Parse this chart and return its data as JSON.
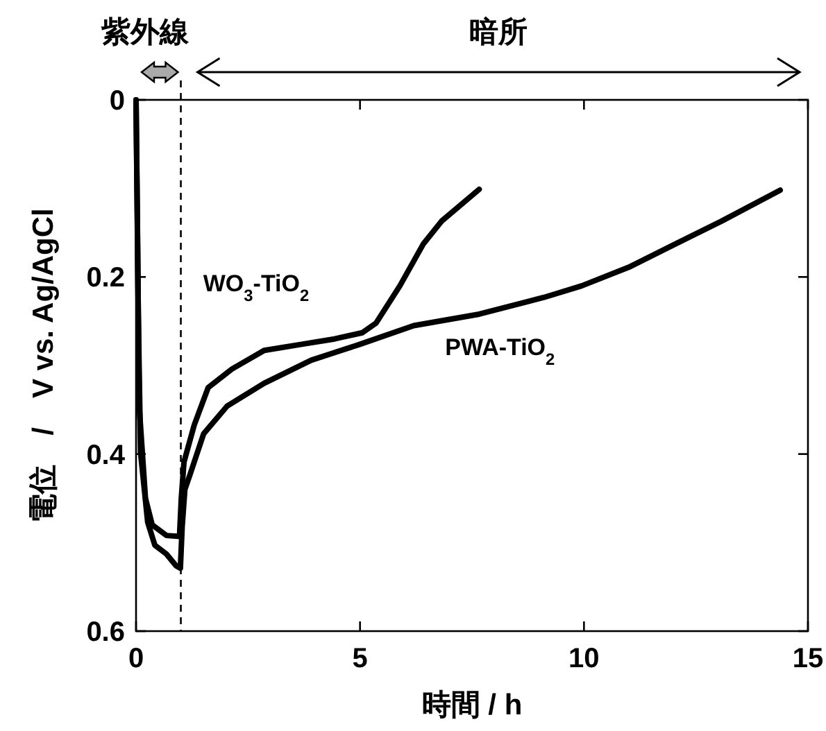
{
  "chart_data": {
    "type": "line",
    "xlabel": "時間 / h",
    "ylabel": "電位　/　V vs. Ag/AgCl",
    "annotations": [
      "紫外線",
      "暗所"
    ],
    "xlim": [
      0,
      15
    ],
    "ylim": [
      0.6,
      0
    ],
    "xticks": [
      0,
      5,
      10,
      15
    ],
    "yticks": [
      0,
      0.2,
      0.4,
      0.6
    ],
    "grid": false,
    "legend": false,
    "marker": "none",
    "line_style": "solid",
    "ref_lines": [
      {
        "axis": "x",
        "value": 1,
        "line_style": "dashed",
        "color": "#000000"
      }
    ],
    "series": [
      {
        "name": "WO$_{3}$-TiO$_{2}$",
        "color": "#000000",
        "x": [
          0,
          0.03,
          0.07,
          0.21,
          0.36,
          0.68,
          0.97,
          1.01,
          1.07,
          1.3,
          1.61,
          2.14,
          2.86,
          3.7,
          4.43,
          5.05,
          5.36,
          5.89,
          6.41,
          6.82,
          7.66
        ],
        "values": [
          0,
          0.137,
          0.346,
          0.45,
          0.48,
          0.492,
          0.493,
          0.45,
          0.409,
          0.367,
          0.325,
          0.304,
          0.283,
          0.276,
          0.27,
          0.263,
          0.252,
          0.21,
          0.163,
          0.137,
          0.101
        ]
      },
      {
        "name": "PWA-TiO$_{2}$",
        "color": "#000000",
        "x": [
          0,
          0.05,
          0.1,
          0.26,
          0.42,
          0.68,
          0.89,
          0.99,
          1.03,
          1.09,
          1.2,
          1.51,
          2.03,
          2.86,
          3.91,
          5,
          6.2,
          7.66,
          9.11,
          9.95,
          11,
          12.03,
          13.07,
          14.38
        ],
        "values": [
          0,
          0.242,
          0.398,
          0.477,
          0.503,
          0.513,
          0.526,
          0.529,
          0.482,
          0.44,
          0.424,
          0.377,
          0.346,
          0.32,
          0.294,
          0.276,
          0.255,
          0.242,
          0.223,
          0.21,
          0.189,
          0.163,
          0.137,
          0.102
        ]
      }
    ]
  }
}
